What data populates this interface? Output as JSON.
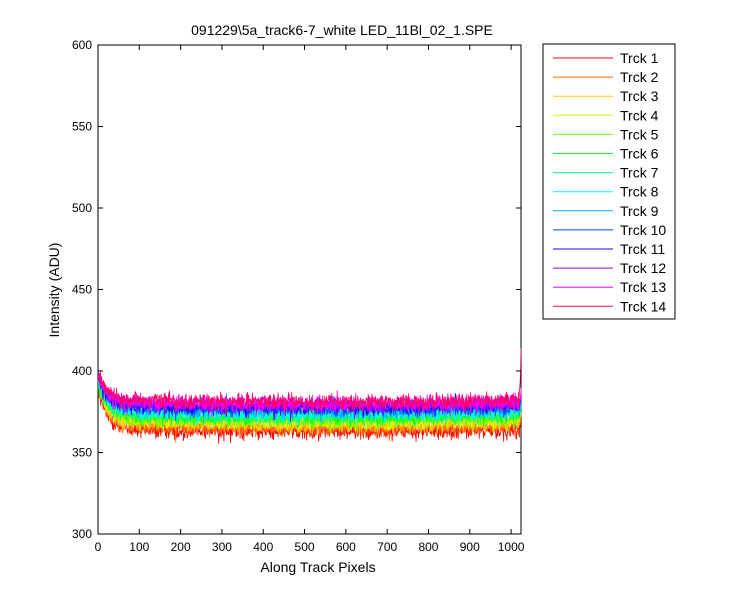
{
  "chart_data": {
    "type": "line",
    "title": "091229\\5a_track6-7_white LED_11Bl_02_1.SPE",
    "xlabel": "Along Track Pixels",
    "ylabel": "Intensity (ADU)",
    "xlim": [
      0,
      1024
    ],
    "ylim": [
      300,
      600
    ],
    "xticks": [
      0,
      100,
      200,
      300,
      400,
      500,
      600,
      700,
      800,
      900,
      1000
    ],
    "yticks": [
      300,
      350,
      400,
      450,
      500,
      550,
      600
    ],
    "grid": false,
    "legend_position": "outside-top-right",
    "series": [
      {
        "name": "Trck 1",
        "color": "#ff0000",
        "start": 388,
        "baseline": 364,
        "noise": 3.2
      },
      {
        "name": "Trck 2",
        "color": "#ff6600",
        "start": 390,
        "baseline": 366,
        "noise": 3.0
      },
      {
        "name": "Trck 3",
        "color": "#ffcc00",
        "start": 391,
        "baseline": 368,
        "noise": 3.0
      },
      {
        "name": "Trck 4",
        "color": "#ccff00",
        "start": 392,
        "baseline": 370,
        "noise": 3.0
      },
      {
        "name": "Trck 5",
        "color": "#66ff00",
        "start": 393,
        "baseline": 371,
        "noise": 3.0
      },
      {
        "name": "Trck 6",
        "color": "#00ff22",
        "start": 394,
        "baseline": 373,
        "noise": 3.0
      },
      {
        "name": "Trck 7",
        "color": "#00ff88",
        "start": 394,
        "baseline": 374,
        "noise": 3.0
      },
      {
        "name": "Trck 8",
        "color": "#00ffee",
        "start": 395,
        "baseline": 375,
        "noise": 3.0
      },
      {
        "name": "Trck 9",
        "color": "#00aaff",
        "start": 396,
        "baseline": 377,
        "noise": 3.0
      },
      {
        "name": "Trck 10",
        "color": "#0044ff",
        "start": 396,
        "baseline": 378,
        "noise": 3.0
      },
      {
        "name": "Trck 11",
        "color": "#2200ff",
        "start": 397,
        "baseline": 379,
        "noise": 3.0
      },
      {
        "name": "Trck 12",
        "color": "#9900ff",
        "start": 397,
        "baseline": 380,
        "noise": 3.0
      },
      {
        "name": "Trck 13",
        "color": "#ff00ff",
        "start": 398,
        "baseline": 381,
        "noise": 3.0
      },
      {
        "name": "Trck 14",
        "color": "#ff0066",
        "start": 399,
        "baseline": 382,
        "noise": 3.0
      }
    ]
  }
}
